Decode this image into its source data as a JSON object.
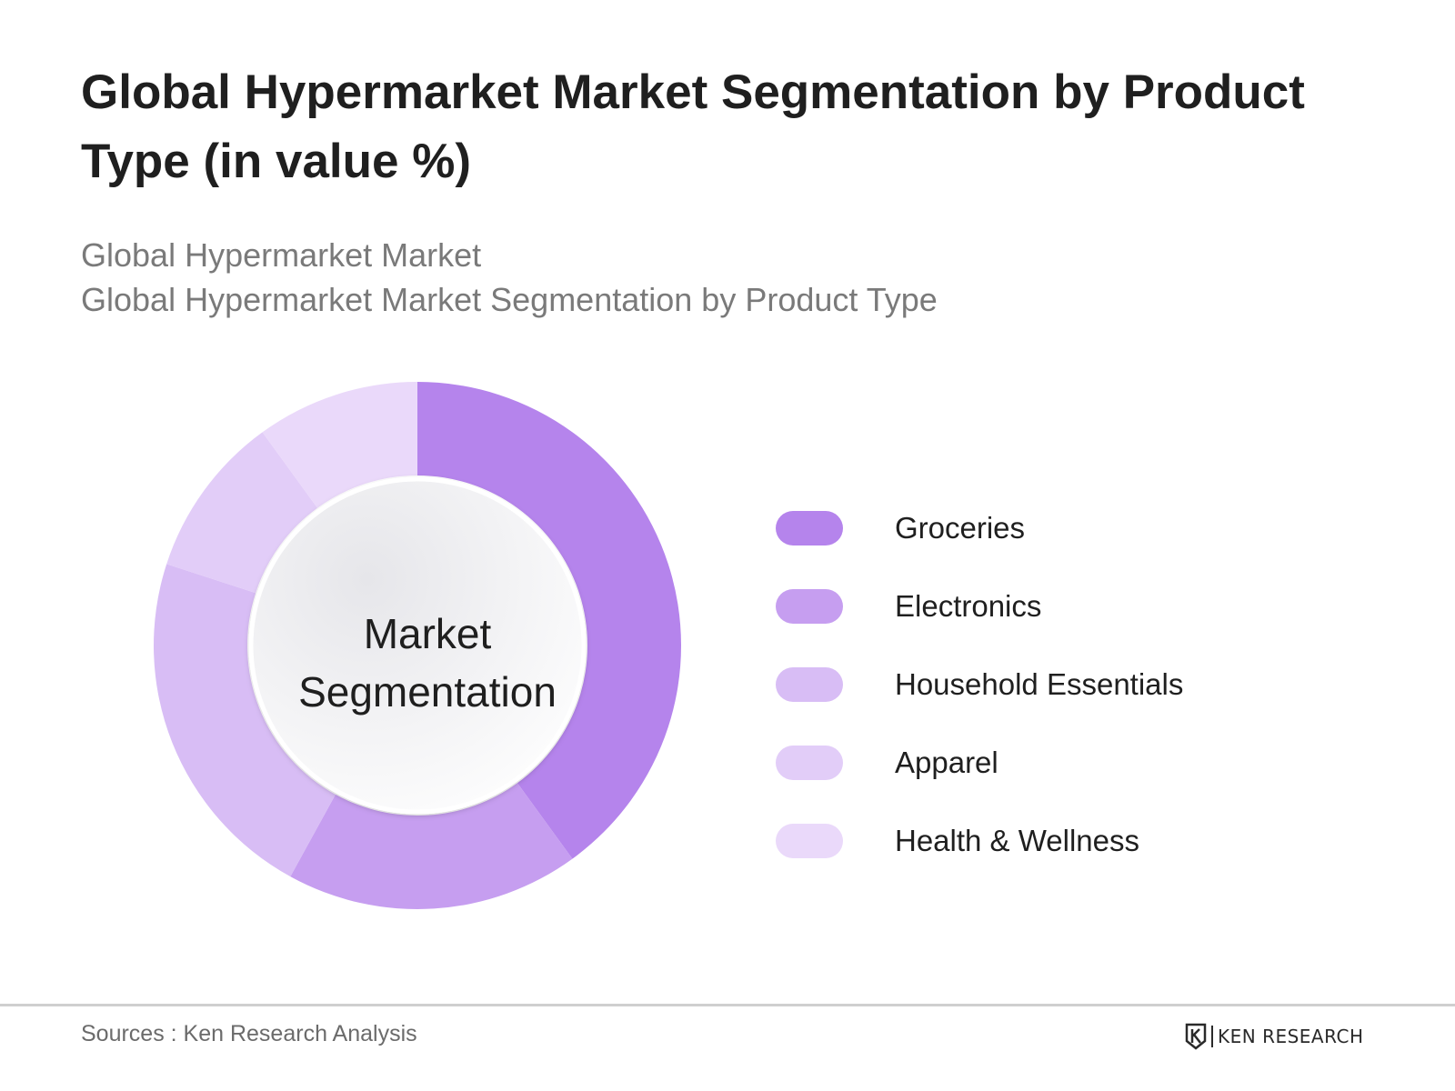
{
  "header": {
    "title": "Global Hypermarket Market Segmentation by Product Type (in value %)",
    "subtitle_lines": [
      "Global Hypermarket Market",
      "Global Hypermarket Market Segmentation by Product Type"
    ]
  },
  "chart_data": {
    "type": "pie",
    "variant": "donut",
    "center_label": [
      "Market",
      "Segmentation"
    ],
    "categories": [
      "Groceries",
      "Electronics",
      "Household Essentials",
      "Apparel",
      "Health & Wellness"
    ],
    "values": [
      40,
      18,
      22,
      10,
      10
    ],
    "colors": [
      "#b584ec",
      "#c69ef0",
      "#d8bdf5",
      "#e2cdf8",
      "#ead9fa"
    ],
    "legend_position": "right"
  },
  "footer": {
    "source": "Sources : Ken Research Analysis",
    "brand": "KEN RESEARCH"
  }
}
